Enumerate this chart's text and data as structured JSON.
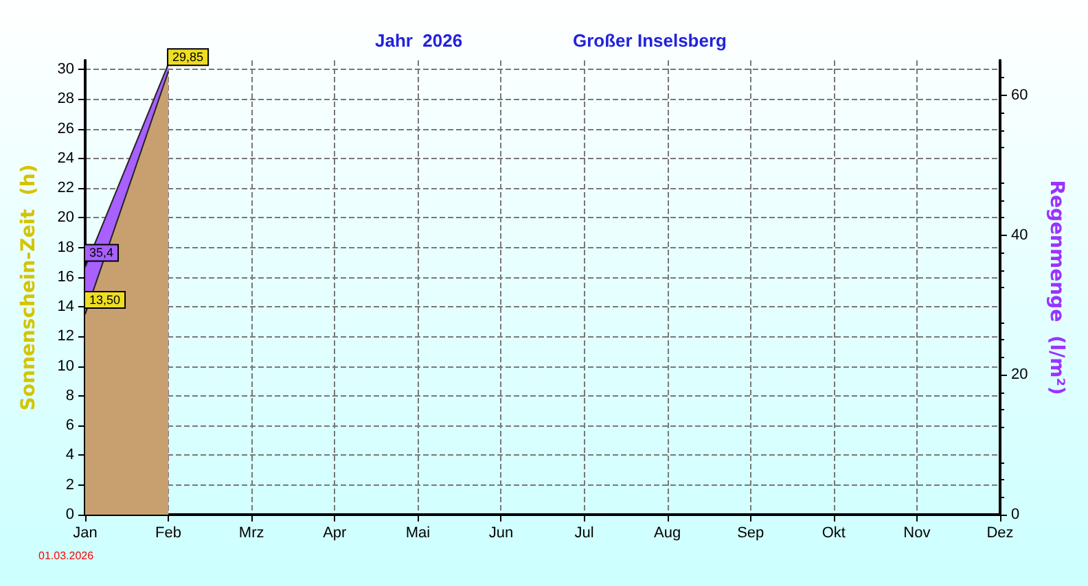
{
  "chart_data": {
    "type": "area",
    "title": "Jahr  2026",
    "subtitle": "Großer Inselsberg",
    "ylabel": "Sonnenschein-Zeit  (h)",
    "y2label": "Regenmenge  (l/m²)",
    "categories": [
      "Jan",
      "Feb",
      "Mrz",
      "Apr",
      "Mai",
      "Jun",
      "Jul",
      "Aug",
      "Sep",
      "Okt",
      "Nov",
      "Dez"
    ],
    "series": [
      {
        "color": "#a860ff",
        "axis": "y2",
        "values": [
          35.4,
          64.5,
          null,
          null,
          null,
          null,
          null,
          null,
          null,
          null,
          null,
          null
        ],
        "value_labels": [
          "35,4",
          null,
          null,
          null,
          null,
          null,
          null,
          null,
          null,
          null,
          null,
          null
        ]
      },
      {
        "color": "#c8a070",
        "values": [
          13.5,
          29.85,
          null,
          null,
          null,
          null,
          null,
          null,
          null,
          null,
          null,
          null
        ],
        "value_labels": [
          "13,50",
          "29,85",
          null,
          null,
          null,
          null,
          null,
          null,
          null,
          null,
          null,
          null
        ]
      }
    ],
    "ylim": [
      0,
      30.6
    ],
    "yticks": [
      0,
      2,
      4,
      6,
      8,
      10,
      12,
      14,
      16,
      18,
      20,
      22,
      24,
      26,
      28,
      30
    ],
    "y2lim": [
      0,
      65
    ],
    "y2ticks": [
      0,
      20,
      40,
      60
    ],
    "grid": true,
    "marker": "none",
    "annotations": [
      "01.03.2026"
    ]
  }
}
